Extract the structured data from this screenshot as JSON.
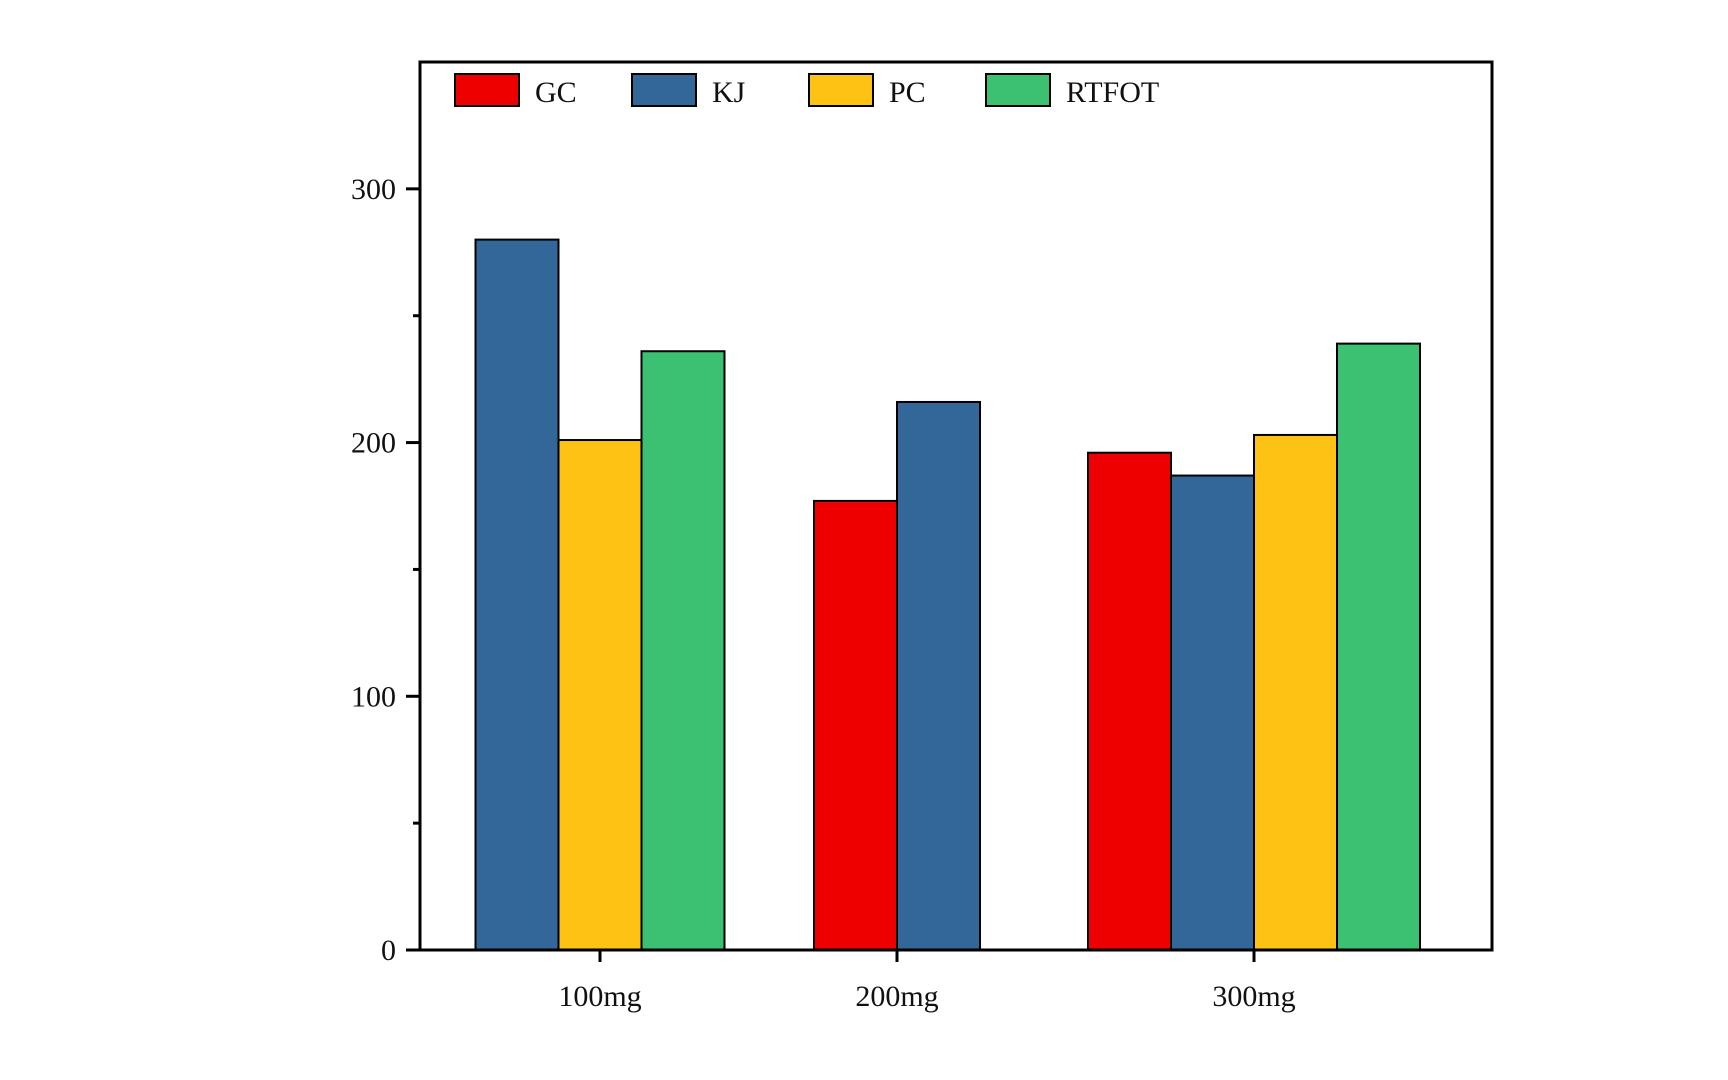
{
  "chart_data": {
    "type": "bar",
    "title": "",
    "xlabel": "",
    "ylabel": "",
    "categories": [
      "100mg",
      "200mg",
      "300mg"
    ],
    "ylim": [
      0,
      350
    ],
    "yticks": [
      0,
      100,
      200,
      300
    ],
    "y_minor_ticks": [
      50,
      150,
      250
    ],
    "grid": false,
    "legend_position": "top-left, horizontal",
    "series": [
      {
        "name": "GC",
        "color": "#ee0000",
        "values": [
          null,
          177,
          196
        ]
      },
      {
        "name": "KJ",
        "color": "#336699",
        "values": [
          280,
          216,
          187
        ]
      },
      {
        "name": "PC",
        "color": "#fdc214",
        "values": [
          201,
          null,
          203
        ]
      },
      {
        "name": "RTFOT",
        "color": "#3cc172",
        "values": [
          236,
          null,
          239
        ]
      }
    ]
  }
}
